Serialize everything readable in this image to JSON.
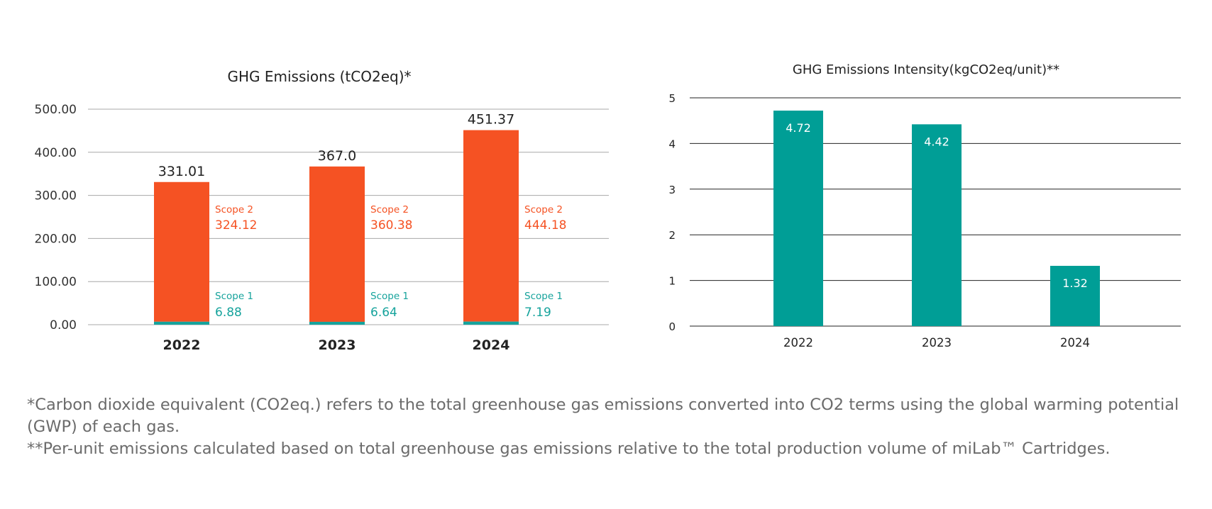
{
  "chart_data": [
    {
      "type": "bar",
      "stacked": true,
      "title": "GHG Emissions (tCO2eq)*",
      "categories": [
        "2022",
        "2023",
        "2024"
      ],
      "totals_labels": [
        "331.01",
        "367.0",
        "451.37"
      ],
      "series": [
        {
          "name": "Scope 1",
          "values": [
            6.88,
            6.64,
            7.19
          ],
          "labels": [
            "6.88",
            "6.64",
            "7.19"
          ],
          "color": "#16a39c"
        },
        {
          "name": "Scope 2",
          "values": [
            324.12,
            360.38,
            444.18
          ],
          "labels": [
            "324.12",
            "360.38",
            "444.18"
          ],
          "color": "#f55223"
        }
      ],
      "yticks": [
        "0.00",
        "100.00",
        "200.00",
        "300.00",
        "400.00",
        "500.00"
      ],
      "ylim": [
        0,
        500
      ],
      "grid": true,
      "legend": "none"
    },
    {
      "type": "bar",
      "title": "GHG Emissions Intensity(kgCO2eq/unit)**",
      "categories": [
        "2022",
        "2023",
        "2024"
      ],
      "values": [
        4.72,
        4.42,
        1.32
      ],
      "labels": [
        "4.72",
        "4.42",
        "1.32"
      ],
      "color": "#009e96",
      "yticks": [
        "0",
        "1",
        "2",
        "3",
        "4",
        "5"
      ],
      "ylim": [
        0,
        5
      ],
      "grid": true,
      "legend": "none"
    }
  ],
  "footnotes": [
    "*Carbon dioxide equivalent (CO2eq.) refers to the total greenhouse gas emissions converted into CO2 terms using the global warming potential (GWP) of each gas.",
    "**Per-unit emissions calculated based on total greenhouse gas emissions relative to the total production volume of miLab™ Cartridges."
  ]
}
